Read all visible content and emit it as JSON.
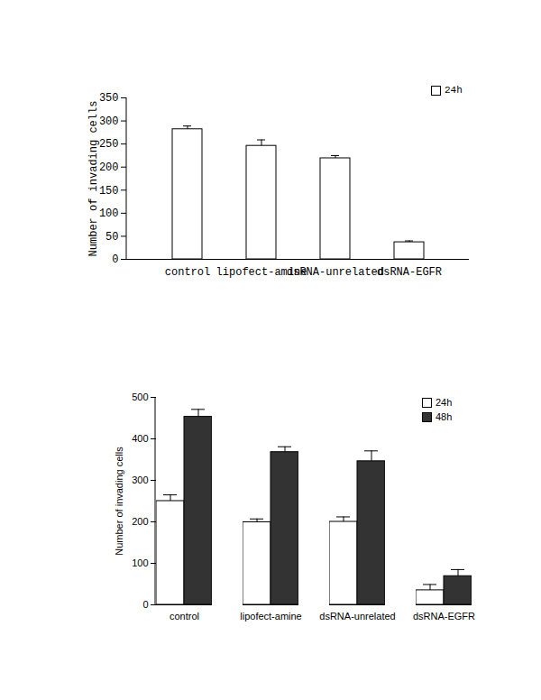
{
  "chart_data": [
    {
      "type": "bar",
      "y_label": "Number of invading cells",
      "categories": [
        "control",
        "lipofect-amine",
        "dsRNA-unrelated",
        "dsRNA-EGFR"
      ],
      "series": [
        {
          "name": "24h",
          "color": "#ffffff",
          "values": [
            282,
            246,
            219,
            37
          ],
          "errors": [
            7,
            13,
            6,
            3
          ]
        }
      ],
      "ylim": [
        0,
        350
      ],
      "yticks": [
        0,
        50,
        100,
        150,
        200,
        250,
        300,
        350
      ],
      "legend": "top-right"
    },
    {
      "type": "bar",
      "y_label": "Number of invading cells",
      "categories": [
        "control",
        "lipofect-amine",
        "dsRNA-unrelated",
        "dsRNA-EGFR"
      ],
      "series": [
        {
          "name": "24h",
          "color": "#ffffff",
          "values": [
            250,
            199,
            200,
            35
          ],
          "errors": [
            15,
            8,
            12,
            14
          ]
        },
        {
          "name": "48h",
          "color": "#333333",
          "values": [
            453,
            368,
            346,
            69
          ],
          "errors": [
            18,
            13,
            25,
            16
          ]
        }
      ],
      "ylim": [
        0,
        500
      ],
      "yticks": [
        0,
        100,
        200,
        300,
        400,
        500
      ],
      "legend": "top-right"
    }
  ]
}
